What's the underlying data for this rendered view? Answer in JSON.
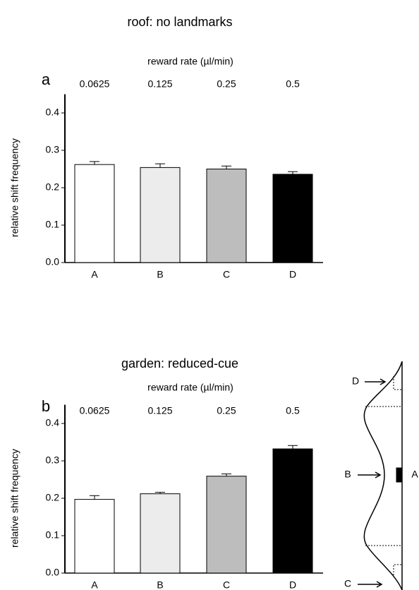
{
  "chart_data": [
    {
      "type": "bar",
      "title": "roof: no landmarks",
      "panel": "a",
      "top_axis_label": "reward rate (µl/min)",
      "top_labels": [
        "0.0625",
        "0.125",
        "0.25",
        "0.5"
      ],
      "ylabel": "relative shift frequency",
      "categories": [
        "A",
        "B",
        "C",
        "D"
      ],
      "values": [
        0.262,
        0.254,
        0.25,
        0.236
      ],
      "errors": [
        0.008,
        0.01,
        0.008,
        0.007
      ],
      "colors": [
        "#ffffff",
        "#ececec",
        "#bdbdbd",
        "#000000"
      ],
      "ylim": [
        0,
        0.45
      ],
      "yticks": [
        {
          "value": 0,
          "label": "0.0"
        },
        0.1,
        0.2,
        0.3,
        0.4
      ]
    },
    {
      "type": "bar",
      "title": "garden: reduced-cue",
      "panel": "b",
      "top_axis_label": "reward rate (µl/min)",
      "top_labels": [
        "0.0625",
        "0.125",
        "0.25",
        "0.5"
      ],
      "ylabel": "relative shift frequency",
      "categories": [
        "A",
        "B",
        "C",
        "D"
      ],
      "values": [
        0.197,
        0.212,
        0.259,
        0.332
      ],
      "errors": [
        0.01,
        0.004,
        0.006,
        0.009
      ],
      "colors": [
        "#ffffff",
        "#ececec",
        "#bdbdbd",
        "#000000"
      ],
      "ylim": [
        0,
        0.45
      ],
      "yticks": [
        {
          "value": 0,
          "label": "0.0"
        },
        0.1,
        0.2,
        0.3,
        0.4
      ]
    }
  ],
  "diagram": {
    "labels": [
      "D",
      "B",
      "A",
      "C"
    ]
  }
}
